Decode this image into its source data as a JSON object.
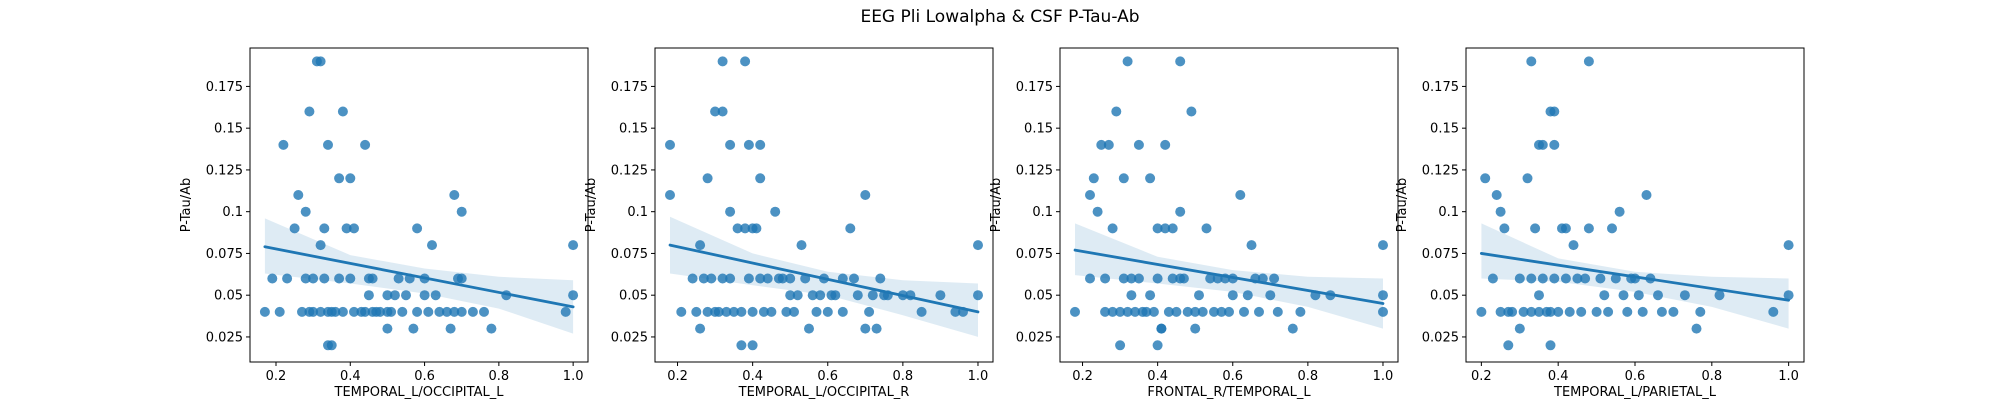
{
  "suptitle": "EEG Pli Lowalpha & CSF P-Tau-Ab",
  "colors": {
    "point": "#1f77b4",
    "line": "#1f77b4",
    "band": "#1f77b4"
  },
  "chart_data": [
    {
      "type": "scatter",
      "xlabel": "TEMPORAL_L/OCCIPITAL_L",
      "ylabel": "P-Tau/Ab",
      "xticks": [
        0.2,
        0.4,
        0.6,
        0.8,
        1.0
      ],
      "yticks": [
        0.025,
        0.05,
        0.075,
        0.1,
        0.125,
        0.15,
        0.175
      ],
      "xlim": [
        0.13,
        1.04
      ],
      "ylim": [
        0.01,
        0.198
      ],
      "grid": false,
      "regression": {
        "x": [
          0.17,
          1.0
        ],
        "y": [
          0.079,
          0.043
        ]
      },
      "ci_band": {
        "x": [
          0.17,
          0.4,
          0.6,
          0.8,
          1.0
        ],
        "lower": [
          0.063,
          0.057,
          0.051,
          0.042,
          0.027
        ],
        "upper": [
          0.096,
          0.074,
          0.066,
          0.061,
          0.059
        ]
      },
      "points": [
        [
          0.17,
          0.04
        ],
        [
          0.19,
          0.06
        ],
        [
          0.21,
          0.04
        ],
        [
          0.22,
          0.14
        ],
        [
          0.23,
          0.06
        ],
        [
          0.25,
          0.09
        ],
        [
          0.26,
          0.11
        ],
        [
          0.27,
          0.04
        ],
        [
          0.28,
          0.1
        ],
        [
          0.28,
          0.06
        ],
        [
          0.29,
          0.16
        ],
        [
          0.29,
          0.04
        ],
        [
          0.3,
          0.04
        ],
        [
          0.3,
          0.06
        ],
        [
          0.31,
          0.19
        ],
        [
          0.32,
          0.19
        ],
        [
          0.32,
          0.08
        ],
        [
          0.32,
          0.04
        ],
        [
          0.33,
          0.09
        ],
        [
          0.33,
          0.06
        ],
        [
          0.34,
          0.14
        ],
        [
          0.34,
          0.04
        ],
        [
          0.34,
          0.02
        ],
        [
          0.35,
          0.02
        ],
        [
          0.35,
          0.04
        ],
        [
          0.36,
          0.04
        ],
        [
          0.37,
          0.12
        ],
        [
          0.37,
          0.06
        ],
        [
          0.38,
          0.16
        ],
        [
          0.38,
          0.04
        ],
        [
          0.39,
          0.09
        ],
        [
          0.4,
          0.12
        ],
        [
          0.4,
          0.06
        ],
        [
          0.41,
          0.09
        ],
        [
          0.41,
          0.04
        ],
        [
          0.43,
          0.04
        ],
        [
          0.44,
          0.14
        ],
        [
          0.44,
          0.04
        ],
        [
          0.45,
          0.06
        ],
        [
          0.45,
          0.05
        ],
        [
          0.46,
          0.06
        ],
        [
          0.46,
          0.04
        ],
        [
          0.47,
          0.04
        ],
        [
          0.48,
          0.04
        ],
        [
          0.5,
          0.04
        ],
        [
          0.5,
          0.03
        ],
        [
          0.5,
          0.05
        ],
        [
          0.51,
          0.04
        ],
        [
          0.52,
          0.05
        ],
        [
          0.53,
          0.06
        ],
        [
          0.54,
          0.04
        ],
        [
          0.55,
          0.05
        ],
        [
          0.56,
          0.06
        ],
        [
          0.57,
          0.03
        ],
        [
          0.58,
          0.04
        ],
        [
          0.58,
          0.09
        ],
        [
          0.6,
          0.06
        ],
        [
          0.6,
          0.05
        ],
        [
          0.61,
          0.04
        ],
        [
          0.62,
          0.08
        ],
        [
          0.63,
          0.05
        ],
        [
          0.64,
          0.04
        ],
        [
          0.66,
          0.04
        ],
        [
          0.67,
          0.03
        ],
        [
          0.68,
          0.11
        ],
        [
          0.68,
          0.04
        ],
        [
          0.69,
          0.06
        ],
        [
          0.7,
          0.1
        ],
        [
          0.7,
          0.06
        ],
        [
          0.7,
          0.04
        ],
        [
          0.73,
          0.04
        ],
        [
          0.76,
          0.04
        ],
        [
          0.78,
          0.03
        ],
        [
          0.82,
          0.05
        ],
        [
          0.98,
          0.04
        ],
        [
          1.0,
          0.08
        ],
        [
          1.0,
          0.05
        ]
      ]
    },
    {
      "type": "scatter",
      "xlabel": "TEMPORAL_L/OCCIPITAL_R",
      "ylabel": "P-Tau/Ab",
      "xticks": [
        0.2,
        0.4,
        0.6,
        0.8,
        1.0
      ],
      "yticks": [
        0.025,
        0.05,
        0.075,
        0.1,
        0.125,
        0.15,
        0.175
      ],
      "xlim": [
        0.14,
        1.04
      ],
      "ylim": [
        0.01,
        0.198
      ],
      "grid": false,
      "regression": {
        "x": [
          0.18,
          1.0
        ],
        "y": [
          0.08,
          0.04
        ]
      },
      "ci_band": {
        "x": [
          0.18,
          0.4,
          0.6,
          0.8,
          1.0
        ],
        "lower": [
          0.063,
          0.056,
          0.05,
          0.038,
          0.025
        ],
        "upper": [
          0.097,
          0.075,
          0.064,
          0.059,
          0.057
        ]
      },
      "points": [
        [
          0.18,
          0.14
        ],
        [
          0.18,
          0.11
        ],
        [
          0.21,
          0.04
        ],
        [
          0.24,
          0.06
        ],
        [
          0.25,
          0.04
        ],
        [
          0.26,
          0.08
        ],
        [
          0.26,
          0.03
        ],
        [
          0.27,
          0.06
        ],
        [
          0.28,
          0.12
        ],
        [
          0.28,
          0.04
        ],
        [
          0.29,
          0.06
        ],
        [
          0.3,
          0.16
        ],
        [
          0.3,
          0.04
        ],
        [
          0.31,
          0.04
        ],
        [
          0.32,
          0.19
        ],
        [
          0.32,
          0.16
        ],
        [
          0.32,
          0.06
        ],
        [
          0.33,
          0.04
        ],
        [
          0.34,
          0.14
        ],
        [
          0.34,
          0.1
        ],
        [
          0.34,
          0.06
        ],
        [
          0.35,
          0.04
        ],
        [
          0.36,
          0.09
        ],
        [
          0.37,
          0.04
        ],
        [
          0.37,
          0.02
        ],
        [
          0.38,
          0.19
        ],
        [
          0.38,
          0.09
        ],
        [
          0.39,
          0.14
        ],
        [
          0.39,
          0.06
        ],
        [
          0.4,
          0.09
        ],
        [
          0.4,
          0.04
        ],
        [
          0.4,
          0.02
        ],
        [
          0.41,
          0.09
        ],
        [
          0.42,
          0.14
        ],
        [
          0.42,
          0.12
        ],
        [
          0.42,
          0.06
        ],
        [
          0.43,
          0.04
        ],
        [
          0.44,
          0.06
        ],
        [
          0.45,
          0.04
        ],
        [
          0.46,
          0.1
        ],
        [
          0.47,
          0.06
        ],
        [
          0.48,
          0.06
        ],
        [
          0.49,
          0.04
        ],
        [
          0.5,
          0.06
        ],
        [
          0.5,
          0.05
        ],
        [
          0.51,
          0.04
        ],
        [
          0.52,
          0.05
        ],
        [
          0.53,
          0.08
        ],
        [
          0.54,
          0.06
        ],
        [
          0.55,
          0.03
        ],
        [
          0.56,
          0.05
        ],
        [
          0.57,
          0.04
        ],
        [
          0.58,
          0.05
        ],
        [
          0.59,
          0.06
        ],
        [
          0.6,
          0.04
        ],
        [
          0.61,
          0.05
        ],
        [
          0.62,
          0.05
        ],
        [
          0.64,
          0.04
        ],
        [
          0.64,
          0.06
        ],
        [
          0.66,
          0.09
        ],
        [
          0.67,
          0.06
        ],
        [
          0.68,
          0.05
        ],
        [
          0.7,
          0.11
        ],
        [
          0.7,
          0.03
        ],
        [
          0.71,
          0.04
        ],
        [
          0.72,
          0.05
        ],
        [
          0.73,
          0.03
        ],
        [
          0.74,
          0.06
        ],
        [
          0.75,
          0.05
        ],
        [
          0.76,
          0.05
        ],
        [
          0.8,
          0.05
        ],
        [
          0.82,
          0.05
        ],
        [
          0.85,
          0.04
        ],
        [
          0.9,
          0.05
        ],
        [
          0.94,
          0.04
        ],
        [
          0.96,
          0.04
        ],
        [
          1.0,
          0.08
        ],
        [
          1.0,
          0.05
        ]
      ]
    },
    {
      "type": "scatter",
      "xlabel": "FRONTAL_R/TEMPORAL_L",
      "ylabel": "P-Tau/Ab",
      "xticks": [
        0.2,
        0.4,
        0.6,
        0.8,
        1.0
      ],
      "yticks": [
        0.025,
        0.05,
        0.075,
        0.1,
        0.125,
        0.15,
        0.175
      ],
      "xlim": [
        0.14,
        1.04
      ],
      "ylim": [
        0.01,
        0.198
      ],
      "grid": false,
      "regression": {
        "x": [
          0.18,
          1.0
        ],
        "y": [
          0.077,
          0.045
        ]
      },
      "ci_band": {
        "x": [
          0.18,
          0.4,
          0.6,
          0.8,
          1.0
        ],
        "lower": [
          0.062,
          0.057,
          0.052,
          0.043,
          0.03
        ],
        "upper": [
          0.093,
          0.073,
          0.065,
          0.061,
          0.06
        ]
      },
      "points": [
        [
          0.18,
          0.04
        ],
        [
          0.22,
          0.06
        ],
        [
          0.22,
          0.11
        ],
        [
          0.23,
          0.12
        ],
        [
          0.24,
          0.1
        ],
        [
          0.25,
          0.14
        ],
        [
          0.26,
          0.06
        ],
        [
          0.26,
          0.04
        ],
        [
          0.27,
          0.14
        ],
        [
          0.28,
          0.09
        ],
        [
          0.28,
          0.04
        ],
        [
          0.29,
          0.16
        ],
        [
          0.3,
          0.02
        ],
        [
          0.3,
          0.04
        ],
        [
          0.31,
          0.06
        ],
        [
          0.31,
          0.12
        ],
        [
          0.32,
          0.19
        ],
        [
          0.32,
          0.04
        ],
        [
          0.33,
          0.06
        ],
        [
          0.33,
          0.05
        ],
        [
          0.34,
          0.04
        ],
        [
          0.35,
          0.14
        ],
        [
          0.35,
          0.06
        ],
        [
          0.36,
          0.04
        ],
        [
          0.37,
          0.04
        ],
        [
          0.38,
          0.05
        ],
        [
          0.38,
          0.12
        ],
        [
          0.39,
          0.04
        ],
        [
          0.4,
          0.06
        ],
        [
          0.4,
          0.02
        ],
        [
          0.4,
          0.09
        ],
        [
          0.41,
          0.03
        ],
        [
          0.41,
          0.03
        ],
        [
          0.42,
          0.14
        ],
        [
          0.42,
          0.09
        ],
        [
          0.43,
          0.04
        ],
        [
          0.44,
          0.06
        ],
        [
          0.44,
          0.09
        ],
        [
          0.45,
          0.04
        ],
        [
          0.46,
          0.19
        ],
        [
          0.46,
          0.1
        ],
        [
          0.46,
          0.06
        ],
        [
          0.47,
          0.06
        ],
        [
          0.48,
          0.04
        ],
        [
          0.49,
          0.16
        ],
        [
          0.5,
          0.04
        ],
        [
          0.5,
          0.03
        ],
        [
          0.51,
          0.05
        ],
        [
          0.52,
          0.04
        ],
        [
          0.53,
          0.09
        ],
        [
          0.54,
          0.06
        ],
        [
          0.55,
          0.04
        ],
        [
          0.56,
          0.06
        ],
        [
          0.57,
          0.04
        ],
        [
          0.58,
          0.06
        ],
        [
          0.59,
          0.04
        ],
        [
          0.6,
          0.06
        ],
        [
          0.6,
          0.05
        ],
        [
          0.62,
          0.11
        ],
        [
          0.63,
          0.04
        ],
        [
          0.64,
          0.05
        ],
        [
          0.65,
          0.08
        ],
        [
          0.66,
          0.06
        ],
        [
          0.67,
          0.04
        ],
        [
          0.68,
          0.06
        ],
        [
          0.7,
          0.05
        ],
        [
          0.71,
          0.06
        ],
        [
          0.72,
          0.04
        ],
        [
          0.76,
          0.03
        ],
        [
          0.78,
          0.04
        ],
        [
          0.82,
          0.05
        ],
        [
          0.86,
          0.05
        ],
        [
          1.0,
          0.08
        ],
        [
          1.0,
          0.05
        ],
        [
          1.0,
          0.04
        ]
      ]
    },
    {
      "type": "scatter",
      "xlabel": "TEMPORAL_L/PARIETAL_L",
      "ylabel": "P-Tau/Ab",
      "xticks": [
        0.2,
        0.4,
        0.6,
        0.8,
        1.0
      ],
      "yticks": [
        0.025,
        0.05,
        0.075,
        0.1,
        0.125,
        0.15,
        0.175
      ],
      "xlim": [
        0.16,
        1.04
      ],
      "ylim": [
        0.01,
        0.198
      ],
      "grid": false,
      "regression": {
        "x": [
          0.2,
          1.0
        ],
        "y": [
          0.075,
          0.047
        ]
      },
      "ci_band": {
        "x": [
          0.2,
          0.4,
          0.6,
          0.8,
          1.0
        ],
        "lower": [
          0.06,
          0.058,
          0.052,
          0.043,
          0.03
        ],
        "upper": [
          0.093,
          0.072,
          0.064,
          0.061,
          0.06
        ]
      },
      "points": [
        [
          0.2,
          0.04
        ],
        [
          0.21,
          0.12
        ],
        [
          0.23,
          0.06
        ],
        [
          0.24,
          0.11
        ],
        [
          0.25,
          0.1
        ],
        [
          0.25,
          0.04
        ],
        [
          0.26,
          0.09
        ],
        [
          0.27,
          0.04
        ],
        [
          0.27,
          0.02
        ],
        [
          0.28,
          0.04
        ],
        [
          0.3,
          0.06
        ],
        [
          0.3,
          0.03
        ],
        [
          0.31,
          0.04
        ],
        [
          0.32,
          0.12
        ],
        [
          0.33,
          0.19
        ],
        [
          0.33,
          0.06
        ],
        [
          0.33,
          0.04
        ],
        [
          0.34,
          0.09
        ],
        [
          0.35,
          0.14
        ],
        [
          0.35,
          0.05
        ],
        [
          0.35,
          0.04
        ],
        [
          0.36,
          0.14
        ],
        [
          0.36,
          0.06
        ],
        [
          0.37,
          0.04
        ],
        [
          0.38,
          0.16
        ],
        [
          0.38,
          0.04
        ],
        [
          0.38,
          0.02
        ],
        [
          0.39,
          0.16
        ],
        [
          0.39,
          0.14
        ],
        [
          0.39,
          0.06
        ],
        [
          0.4,
          0.04
        ],
        [
          0.41,
          0.09
        ],
        [
          0.42,
          0.09
        ],
        [
          0.42,
          0.06
        ],
        [
          0.43,
          0.04
        ],
        [
          0.44,
          0.08
        ],
        [
          0.45,
          0.06
        ],
        [
          0.46,
          0.04
        ],
        [
          0.47,
          0.06
        ],
        [
          0.48,
          0.19
        ],
        [
          0.48,
          0.09
        ],
        [
          0.5,
          0.04
        ],
        [
          0.51,
          0.06
        ],
        [
          0.52,
          0.05
        ],
        [
          0.53,
          0.04
        ],
        [
          0.54,
          0.09
        ],
        [
          0.55,
          0.06
        ],
        [
          0.56,
          0.1
        ],
        [
          0.57,
          0.05
        ],
        [
          0.58,
          0.04
        ],
        [
          0.59,
          0.06
        ],
        [
          0.6,
          0.06
        ],
        [
          0.61,
          0.05
        ],
        [
          0.62,
          0.04
        ],
        [
          0.63,
          0.11
        ],
        [
          0.64,
          0.06
        ],
        [
          0.66,
          0.05
        ],
        [
          0.67,
          0.04
        ],
        [
          0.7,
          0.04
        ],
        [
          0.73,
          0.05
        ],
        [
          0.76,
          0.03
        ],
        [
          0.77,
          0.04
        ],
        [
          0.82,
          0.05
        ],
        [
          0.96,
          0.04
        ],
        [
          1.0,
          0.08
        ],
        [
          1.0,
          0.05
        ]
      ]
    }
  ]
}
